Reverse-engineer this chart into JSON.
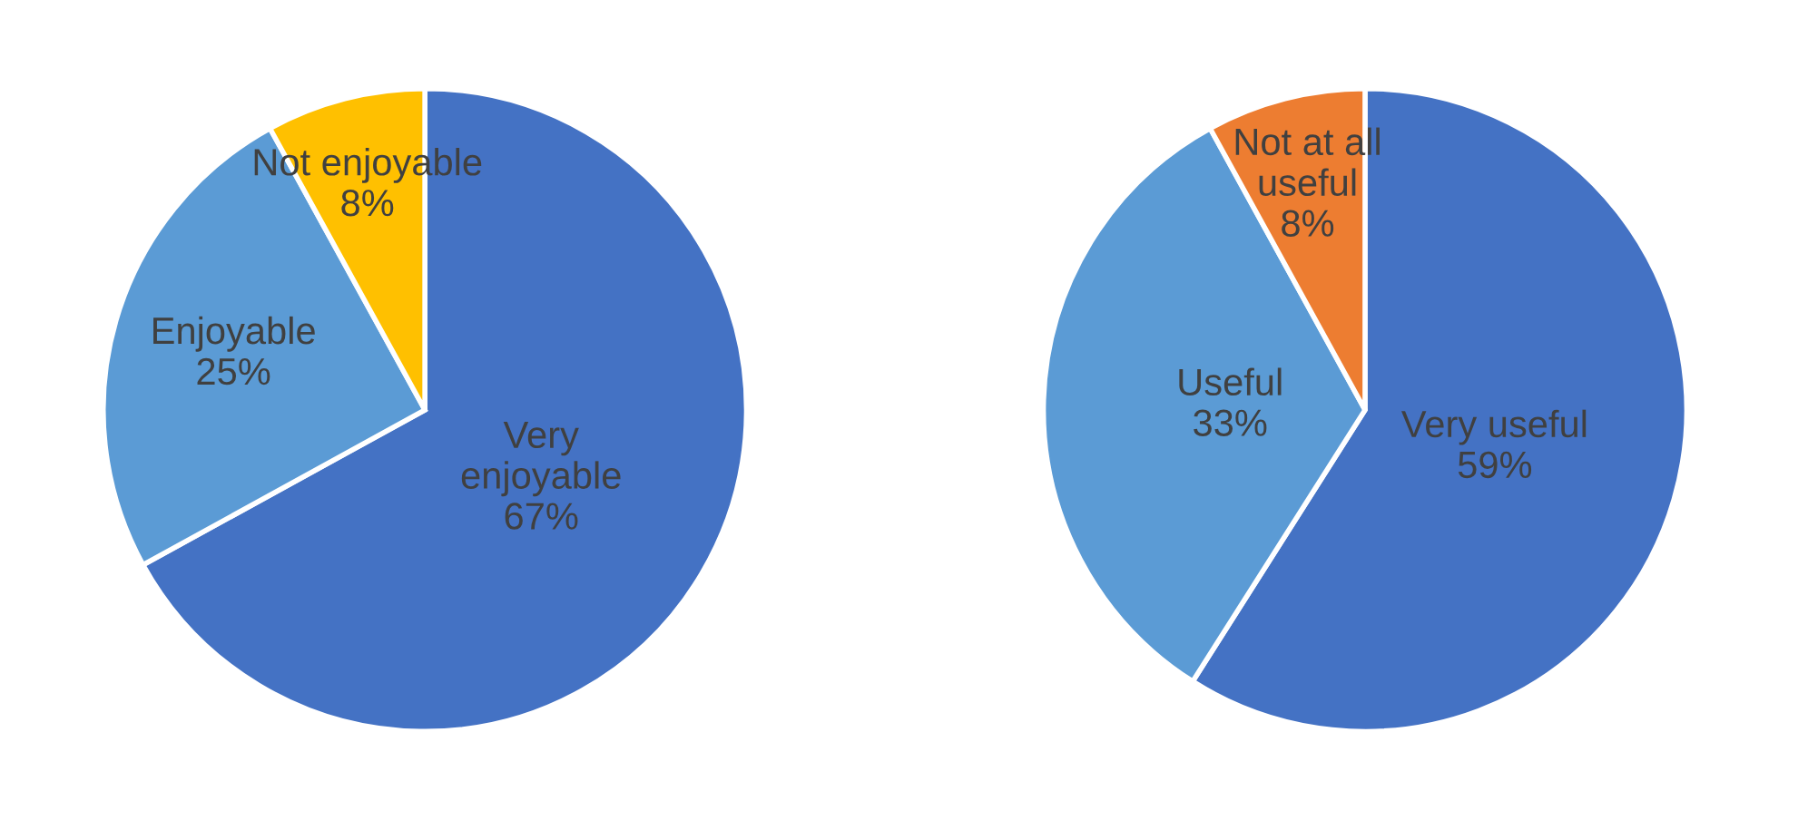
{
  "chart_data": [
    {
      "type": "pie",
      "categories": [
        "Very\nenjoyable",
        "Enjoyable",
        "Not enjoyable"
      ],
      "values": [
        67,
        25,
        8
      ],
      "value_labels": [
        "67%",
        "25%",
        "8%"
      ],
      "colors": [
        "#4472c4",
        "#5b9bd5",
        "#ffc000"
      ],
      "legend": false
    },
    {
      "type": "pie",
      "categories": [
        "Very useful",
        "Useful",
        "Not at all\nuseful"
      ],
      "values": [
        59,
        33,
        8
      ],
      "value_labels": [
        "59%",
        "33%",
        "8%"
      ],
      "colors": [
        "#4472c4",
        "#5b9bd5",
        "#ed7d31"
      ],
      "legend": false
    }
  ]
}
